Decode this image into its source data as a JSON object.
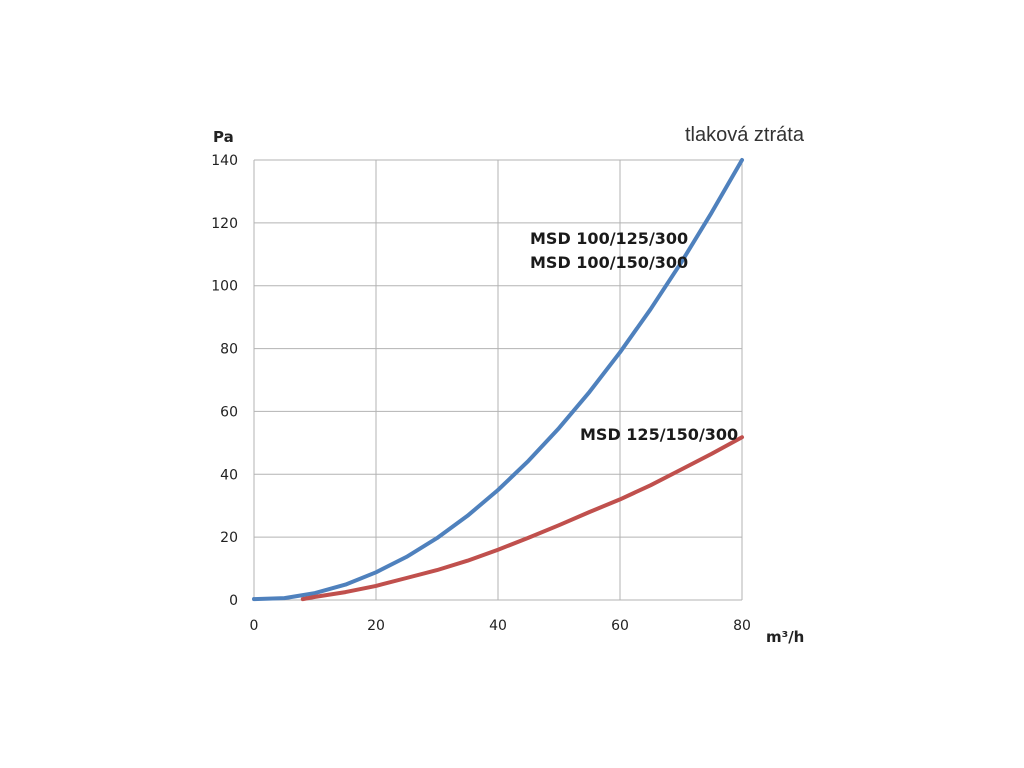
{
  "chart_data": {
    "type": "line",
    "title": "tlaková ztráta",
    "xlabel": "m³/h",
    "ylabel": "Pa",
    "xlim": [
      0,
      80
    ],
    "ylim": [
      0,
      140
    ],
    "xticks": [
      "0",
      "20",
      "40",
      "60",
      "80"
    ],
    "yticks": [
      "0",
      "20",
      "40",
      "60",
      "80",
      "100",
      "120",
      "140"
    ],
    "grid": true,
    "series": [
      {
        "name": "MSD 100/125/300 / MSD 100/150/300",
        "labels": [
          "MSD 100/125/300",
          "MSD 100/150/300"
        ],
        "color": "#4f81bd",
        "x": [
          0,
          5,
          10,
          15,
          20,
          25,
          30,
          35,
          40,
          45,
          50,
          55,
          60,
          65,
          70,
          75,
          80
        ],
        "y": [
          0.3,
          0.6,
          2.2,
          4.9,
          8.8,
          13.7,
          19.7,
          26.8,
          35,
          44.3,
          54.7,
          66.2,
          78.8,
          92.5,
          107.3,
          123.2,
          140
        ]
      },
      {
        "name": "MSD 125/150/300",
        "labels": [
          "MSD 125/150/300"
        ],
        "color": "#c0504d",
        "x": [
          8,
          10,
          15,
          20,
          25,
          30,
          35,
          40,
          45,
          50,
          55,
          60,
          65,
          70,
          75,
          80
        ],
        "y": [
          0.3,
          1,
          2.5,
          4.5,
          7,
          9.5,
          12.5,
          16,
          19.8,
          23.8,
          28,
          32,
          36.5,
          41.5,
          46.5,
          51.8
        ]
      }
    ]
  }
}
